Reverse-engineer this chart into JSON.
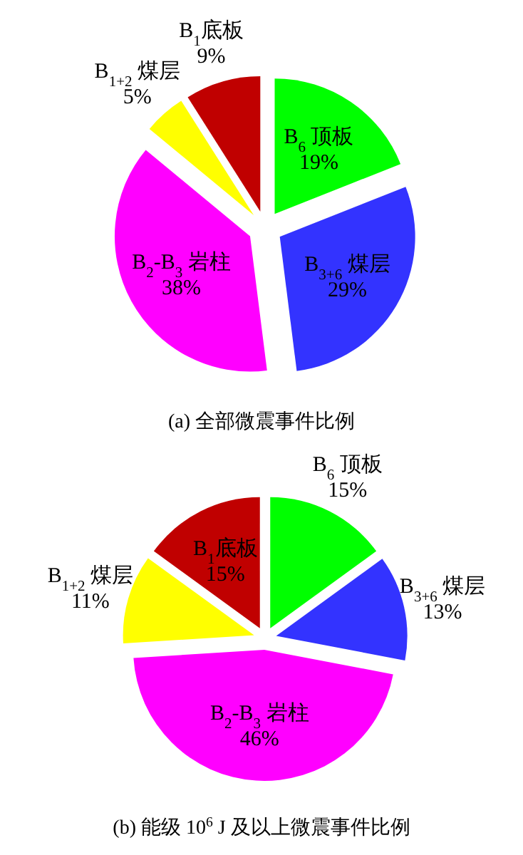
{
  "chart_data": [
    {
      "type": "pie",
      "title": "(a)  全部微震事件比例",
      "categories": [
        "B$_{6}$ 顶板",
        "B$_{3+6}$ 煤层",
        "B$_{2}$-B$_{3}$ 岩柱",
        "B$_{1+2}$ 煤层",
        "B$_{1}$底板"
      ],
      "values": [
        19,
        29,
        38,
        5,
        9
      ],
      "colors": [
        "#00ff00",
        "#3333ff",
        "#ff00ff",
        "#ffff00",
        "#c00000"
      ],
      "value_labels": [
        "19%",
        "29%",
        "38%",
        "5%",
        "9%"
      ]
    },
    {
      "type": "pie",
      "title": "(b) 能级 10$^{6}$ J 及以上微震事件比例",
      "categories": [
        "B$_{6}$ 顶板",
        "B$_{3+6}$ 煤层",
        "B$_{2}$-B$_{3}$ 岩柱",
        "B$_{1+2}$ 煤层",
        "B$_{1}$底板"
      ],
      "values": [
        15,
        13,
        46,
        11,
        15
      ],
      "colors": [
        "#00ff00",
        "#3333ff",
        "#ff00ff",
        "#ffff00",
        "#c00000"
      ],
      "value_labels": [
        "15%",
        "13%",
        "46%",
        "11%",
        "15%"
      ]
    }
  ]
}
